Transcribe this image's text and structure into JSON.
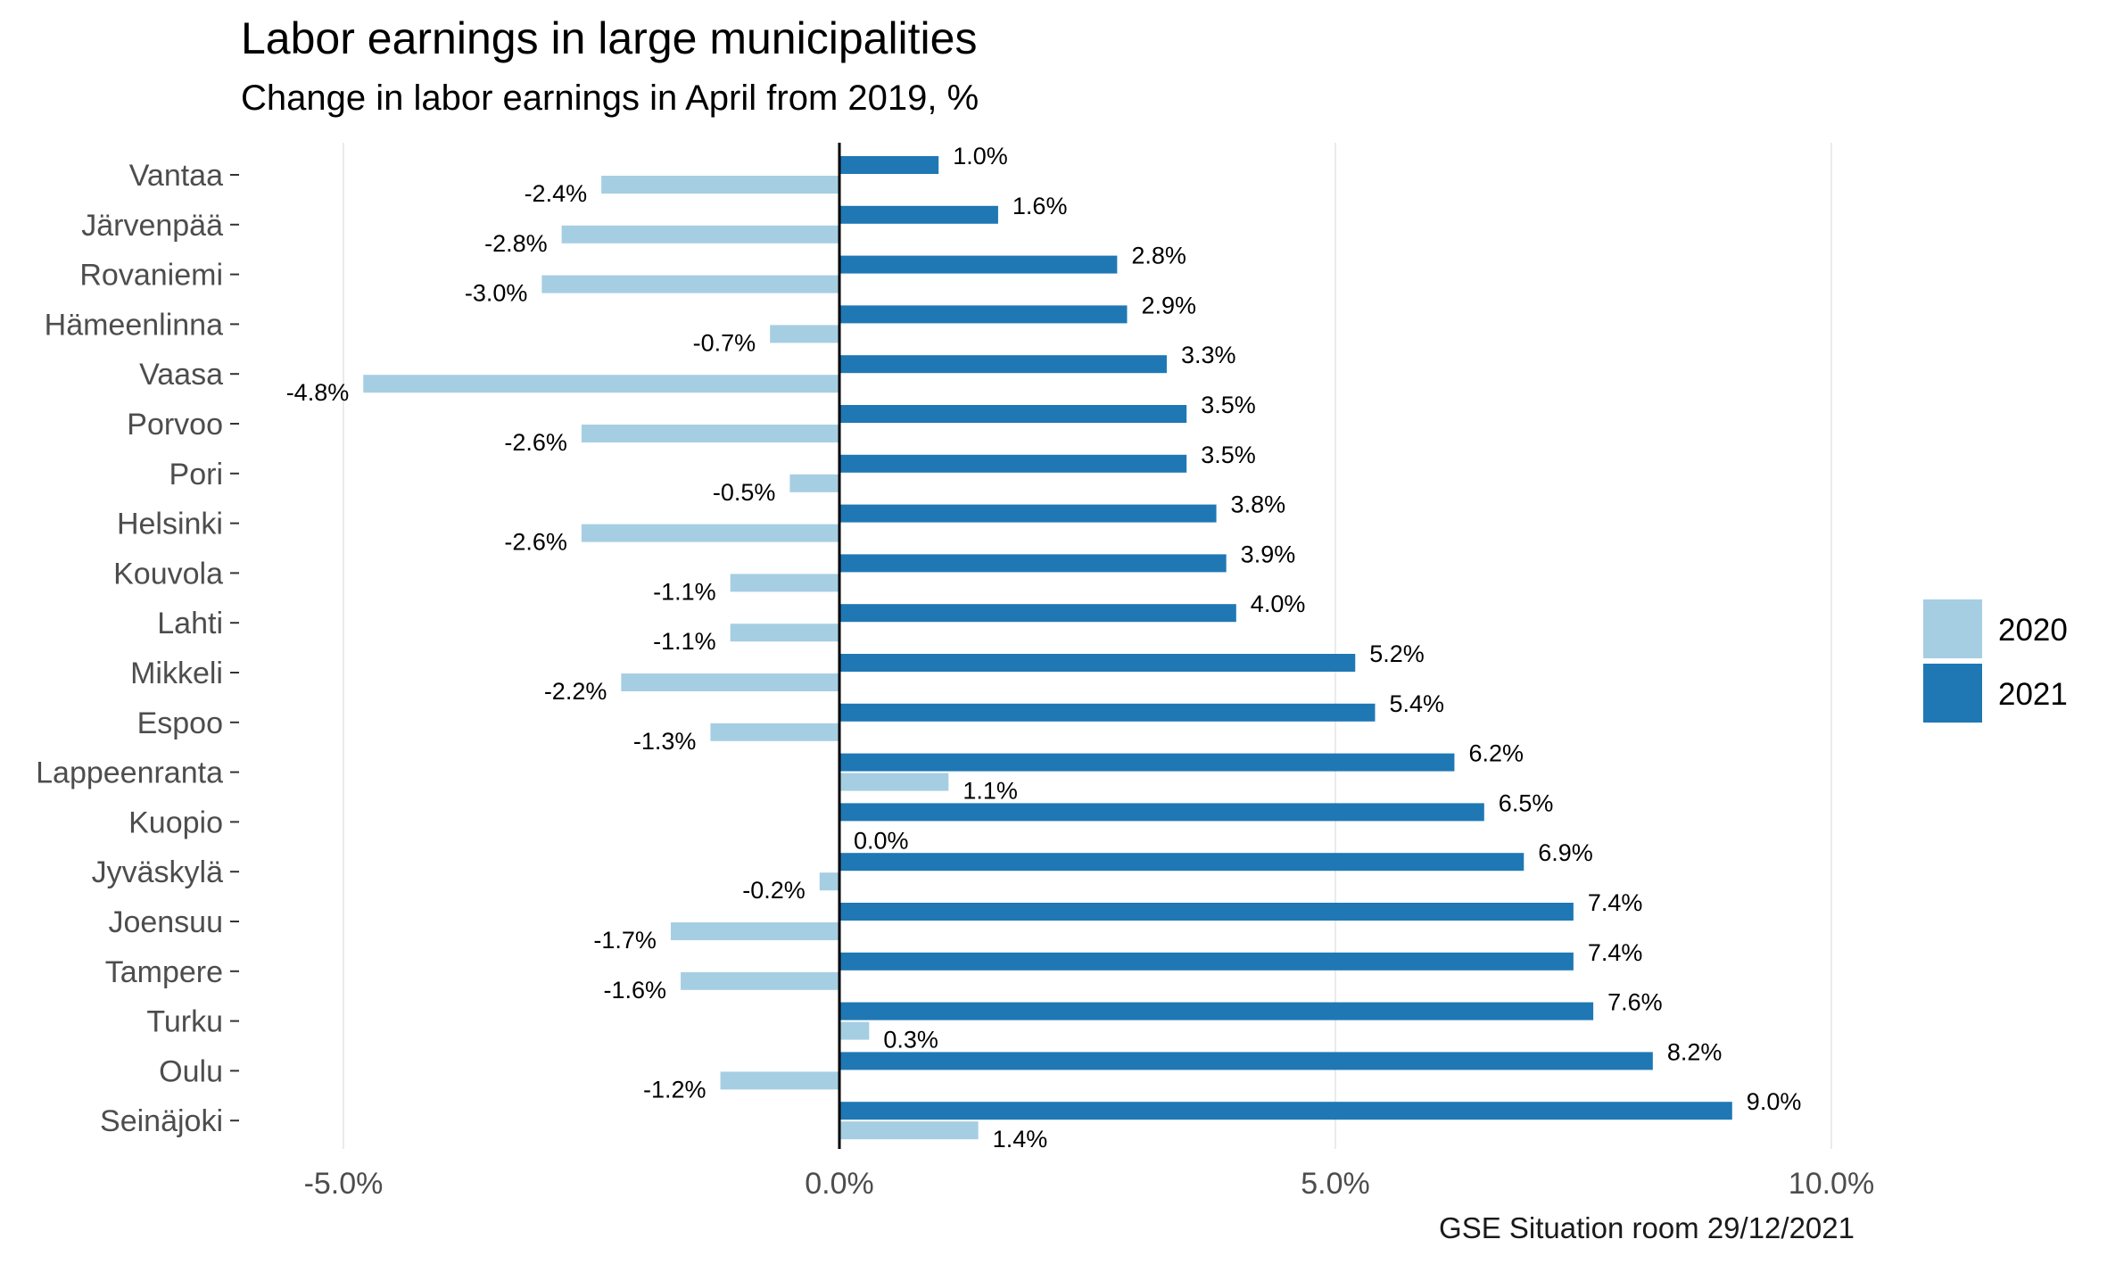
{
  "chart_data": {
    "type": "bar",
    "orientation": "horizontal",
    "title": "Labor earnings in large municipalities",
    "subtitle": "Change in labor earnings in April from 2019, %",
    "caption": "GSE Situation room 29/12/2021",
    "xlabel": "",
    "ylabel": "",
    "xlim": [
      -6.2,
      11.0
    ],
    "x_ticks": [
      -5,
      0,
      5,
      10
    ],
    "x_tick_labels": [
      "-5.0%",
      "0.0%",
      "5.0%",
      "10.0%"
    ],
    "grid": "vertical major",
    "legend_position": "right",
    "categories": [
      "Vantaa",
      "Järvenpää",
      "Rovaniemi",
      "Hämeenlinna",
      "Vaasa",
      "Porvoo",
      "Pori",
      "Helsinki",
      "Kouvola",
      "Lahti",
      "Mikkeli",
      "Espoo",
      "Lappeenranta",
      "Kuopio",
      "Jyväskylä",
      "Joensuu",
      "Tampere",
      "Turku",
      "Oulu",
      "Seinäjoki"
    ],
    "series": [
      {
        "name": "2020",
        "color": "#a6cee3",
        "values": [
          -2.4,
          -2.8,
          -3.0,
          -0.7,
          -4.8,
          -2.6,
          -0.5,
          -2.6,
          -1.1,
          -1.1,
          -2.2,
          -1.3,
          1.1,
          0.0,
          -0.2,
          -1.7,
          -1.6,
          0.3,
          -1.2,
          1.4
        ],
        "labels": [
          "-2.4%",
          "-2.8%",
          "-3.0%",
          "-0.7%",
          "-4.8%",
          "-2.6%",
          "-0.5%",
          "-2.6%",
          "-1.1%",
          "-1.1%",
          "-2.2%",
          "-1.3%",
          "1.1%",
          "0.0%",
          "-0.2%",
          "-1.7%",
          "-1.6%",
          "0.3%",
          "-1.2%",
          "1.4%"
        ]
      },
      {
        "name": "2021",
        "color": "#1f78b4",
        "values": [
          1.0,
          1.6,
          2.8,
          2.9,
          3.3,
          3.5,
          3.5,
          3.8,
          3.9,
          4.0,
          5.2,
          5.4,
          6.2,
          6.5,
          6.9,
          7.4,
          7.4,
          7.6,
          8.2,
          9.0
        ],
        "labels": [
          "1.0%",
          "1.6%",
          "2.8%",
          "2.9%",
          "3.3%",
          "3.5%",
          "3.5%",
          "3.8%",
          "3.9%",
          "4.0%",
          "5.2%",
          "5.4%",
          "6.2%",
          "6.5%",
          "6.9%",
          "7.4%",
          "7.4%",
          "7.6%",
          "8.2%",
          "9.0%"
        ]
      }
    ]
  }
}
